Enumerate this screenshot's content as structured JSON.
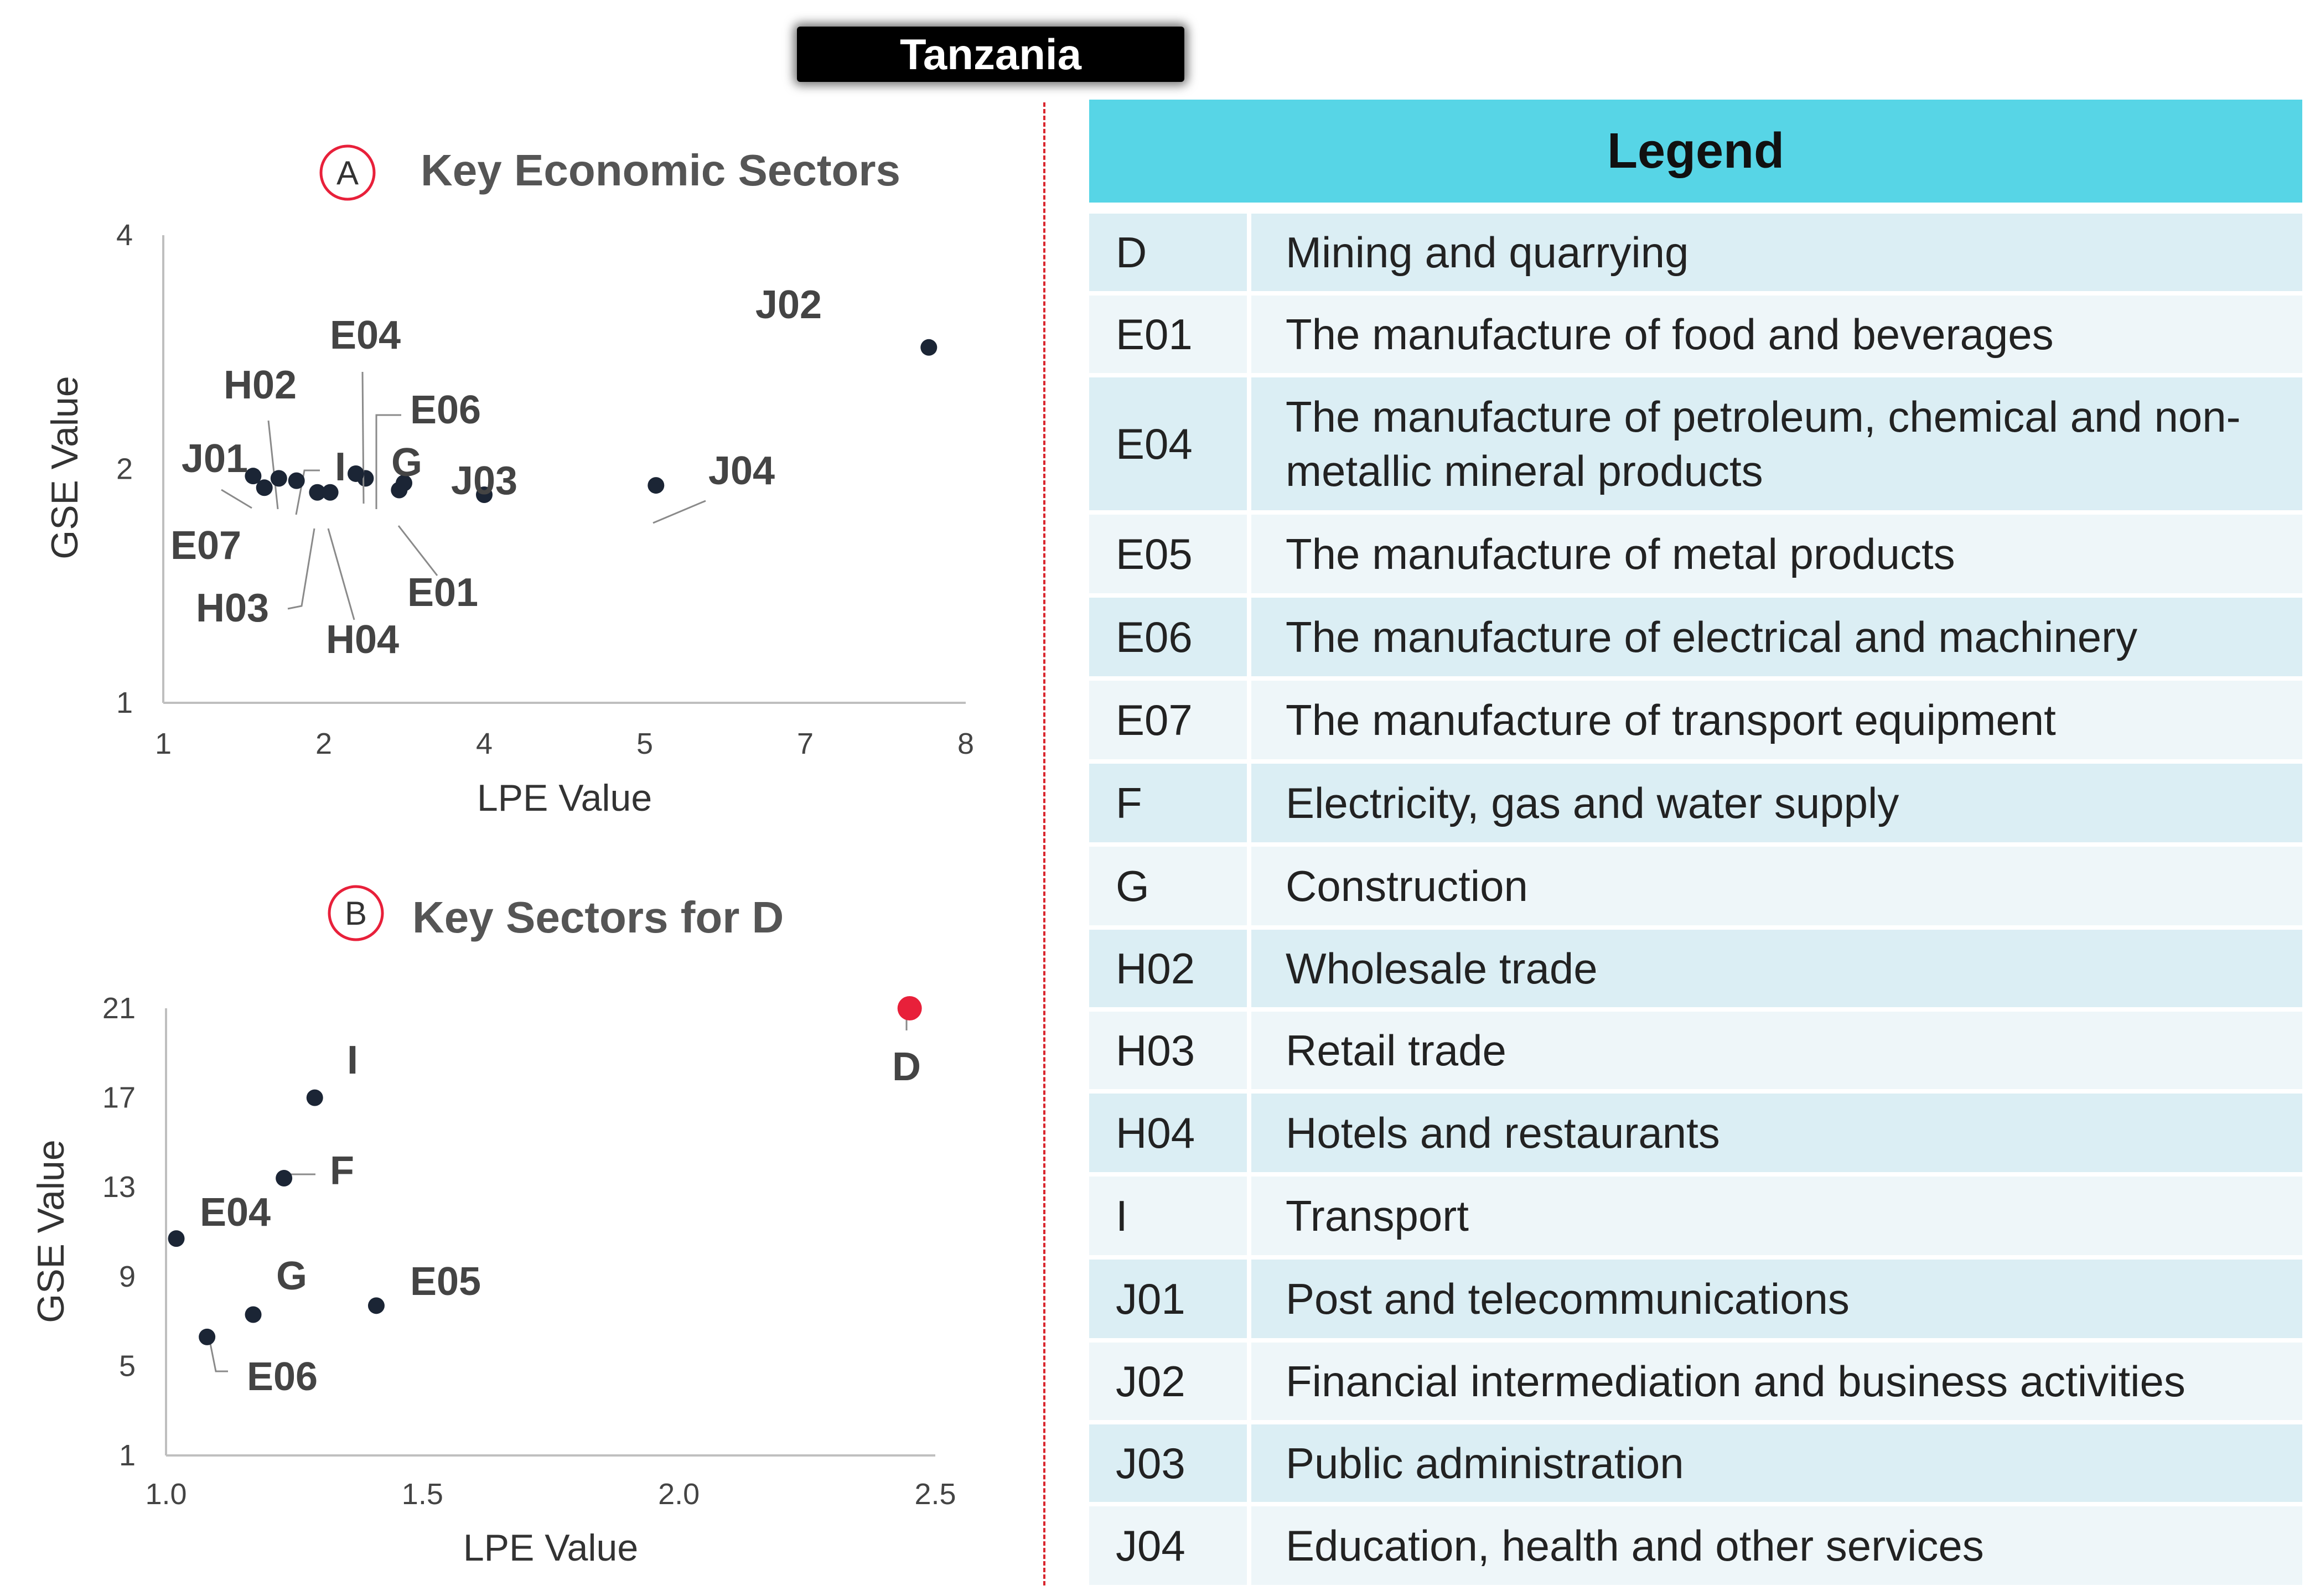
{
  "title": "Tanzania",
  "chart_data": [
    {
      "id": "A",
      "type": "scatter",
      "title": "Key Economic Sectors",
      "panel_letter": "A",
      "xlabel": "LPE Value",
      "ylabel": "GSE Value",
      "xticks": [
        "1",
        "2",
        "4",
        "5",
        "7",
        "8"
      ],
      "yticks": [
        "1",
        "2",
        "4"
      ],
      "points": [
        {
          "label": "J02",
          "x_index": 4.77,
          "y_index": 1.52,
          "color": "#1b2535"
        },
        {
          "label": "J04",
          "x_index": 3.07,
          "y_index": 0.93,
          "color": "#1b2535"
        },
        {
          "label": "J03",
          "x_index": 2.0,
          "y_index": 0.89,
          "color": "#1b2535"
        },
        {
          "label": "E01",
          "x_index": 1.47,
          "y_index": 0.91,
          "color": "#1b2535"
        },
        {
          "label": "G",
          "x_index": 1.5,
          "y_index": 0.94,
          "color": "#1b2535"
        },
        {
          "label": "E06",
          "x_index": 1.26,
          "y_index": 0.96,
          "color": "#1b2535"
        },
        {
          "label": "E04",
          "x_index": 1.2,
          "y_index": 0.98,
          "color": "#1b2535"
        },
        {
          "label": "I",
          "x_index": 0.83,
          "y_index": 0.95,
          "color": "#1b2535"
        },
        {
          "label": "H02",
          "x_index": 0.72,
          "y_index": 0.96,
          "color": "#1b2535"
        },
        {
          "label": "J01",
          "x_index": 0.56,
          "y_index": 0.97,
          "color": "#1b2535"
        },
        {
          "label": "E07",
          "x_index": 0.63,
          "y_index": 0.92,
          "color": "#1b2535"
        },
        {
          "label": "H03",
          "x_index": 0.96,
          "y_index": 0.9,
          "color": "#1b2535"
        },
        {
          "label": "H04",
          "x_index": 1.04,
          "y_index": 0.9,
          "color": "#1b2535"
        }
      ]
    },
    {
      "id": "B",
      "type": "scatter",
      "title": "Key Sectors for D",
      "panel_letter": "B",
      "xlabel": "LPE Value",
      "ylabel": "GSE Value",
      "xticks": [
        "1.0",
        "1.5",
        "2.0",
        "2.5"
      ],
      "yticks": [
        "1",
        "5",
        "9",
        "13",
        "17",
        "21"
      ],
      "xlim": [
        1.0,
        2.5
      ],
      "ylim": [
        1,
        21
      ],
      "points": [
        {
          "label": "D",
          "x": 2.45,
          "y": 21.0,
          "color": "#e8203a"
        },
        {
          "label": "I",
          "x": 1.29,
          "y": 17.0,
          "color": "#1b2535"
        },
        {
          "label": "F",
          "x": 1.23,
          "y": 13.4,
          "color": "#1b2535"
        },
        {
          "label": "E04",
          "x": 1.02,
          "y": 10.7,
          "color": "#1b2535"
        },
        {
          "label": "G",
          "x": 1.17,
          "y": 7.3,
          "color": "#1b2535"
        },
        {
          "label": "E05",
          "x": 1.41,
          "y": 7.7,
          "color": "#1b2535"
        },
        {
          "label": "E06",
          "x": 1.08,
          "y": 6.3,
          "color": "#1b2535"
        }
      ]
    }
  ],
  "legend": {
    "title": "Legend",
    "items": [
      {
        "code": "D",
        "desc": "Mining and quarrying"
      },
      {
        "code": "E01",
        "desc": "The manufacture of food and beverages"
      },
      {
        "code": "E04",
        "desc": "The manufacture of petroleum, chemical and non-metallic mineral products"
      },
      {
        "code": "E05",
        "desc": "The manufacture of metal products"
      },
      {
        "code": "E06",
        "desc": "The manufacture of electrical and machinery"
      },
      {
        "code": "E07",
        "desc": "The manufacture of transport equipment"
      },
      {
        "code": "F",
        "desc": "Electricity, gas and water supply"
      },
      {
        "code": "G",
        "desc": "Construction"
      },
      {
        "code": "H02",
        "desc": "Wholesale trade"
      },
      {
        "code": "H03",
        "desc": "Retail trade"
      },
      {
        "code": "H04",
        "desc": "Hotels and restaurants"
      },
      {
        "code": "I",
        "desc": "Transport"
      },
      {
        "code": "J01",
        "desc": "Post and telecommunications"
      },
      {
        "code": "J02",
        "desc": "Financial intermediation and business activities"
      },
      {
        "code": "J03",
        "desc": "Public administration"
      },
      {
        "code": "J04",
        "desc": "Education, health and other services"
      }
    ]
  }
}
